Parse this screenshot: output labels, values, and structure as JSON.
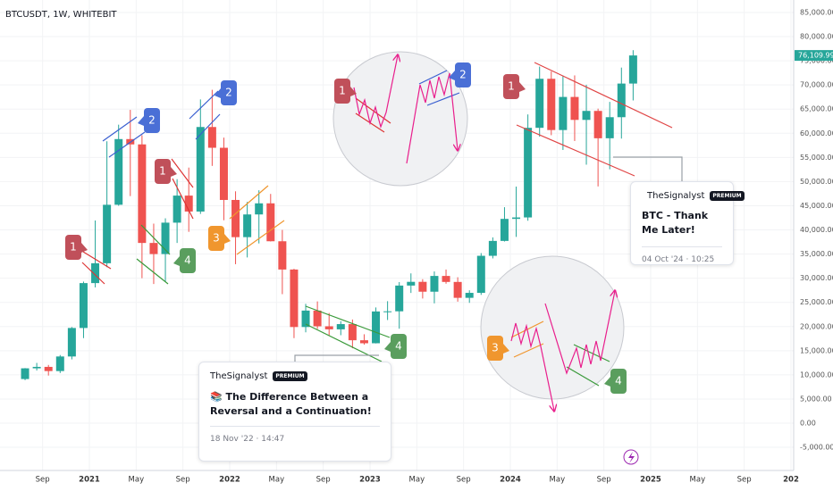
{
  "chart_data": {
    "type": "candlestick",
    "title": "BTCUSDT, 1W, WHITEBIT",
    "x": [
      "2020-07",
      "2020-08",
      "2020-09",
      "2020-10",
      "2020-11",
      "2020-12",
      "2021-01",
      "2021-02",
      "2021-03",
      "2021-04",
      "2021-05",
      "2021-06",
      "2021-07",
      "2021-08",
      "2021-09",
      "2021-10",
      "2021-11",
      "2021-12",
      "2022-01",
      "2022-02",
      "2022-03",
      "2022-04",
      "2022-05",
      "2022-06",
      "2022-07",
      "2022-08",
      "2022-09",
      "2022-10",
      "2022-11",
      "2022-12",
      "2023-01",
      "2023-02",
      "2023-03",
      "2023-04",
      "2023-05",
      "2023-06",
      "2023-07",
      "2023-08",
      "2023-09",
      "2023-10",
      "2023-11",
      "2023-12",
      "2024-01",
      "2024-02",
      "2024-03",
      "2024-04",
      "2024-05",
      "2024-06",
      "2024-07",
      "2024-08",
      "2024-09",
      "2024-10",
      "2024-11"
    ],
    "open": [
      9130,
      11350,
      11650,
      10780,
      13800,
      19700,
      28990,
      33100,
      45200,
      58800,
      57700,
      37300,
      35000,
      41500,
      47100,
      43800,
      61300,
      57000,
      46200,
      38500,
      43200,
      45500,
      37650,
      31800,
      19900,
      23300,
      20050,
      19420,
      20500,
      17160,
      16540,
      23120,
      23150,
      28480,
      29250,
      27210,
      30470,
      29230,
      25940,
      26970,
      34640,
      37720,
      42280,
      42580,
      61130,
      71280,
      60670,
      67520,
      62770,
      64630,
      58970,
      63330,
      70290
    ],
    "high": [
      11400,
      12470,
      12050,
      14100,
      19900,
      29300,
      41950,
      58350,
      61780,
      64850,
      59600,
      41300,
      42400,
      50500,
      52900,
      67000,
      69000,
      59100,
      47990,
      45800,
      48200,
      47450,
      40000,
      31950,
      24700,
      25200,
      22800,
      21100,
      21450,
      18400,
      23950,
      25250,
      29200,
      31000,
      29800,
      31400,
      31800,
      30200,
      27500,
      35200,
      38450,
      44700,
      48970,
      63900,
      73800,
      72800,
      71950,
      71980,
      70050,
      65100,
      66500,
      73600,
      77200
    ],
    "low": [
      8900,
      10900,
      9850,
      10380,
      13200,
      17600,
      28100,
      32300,
      45000,
      47000,
      30000,
      28800,
      29300,
      37300,
      39600,
      43300,
      53250,
      42000,
      32900,
      34300,
      37200,
      37600,
      26700,
      17600,
      18800,
      19500,
      18150,
      18200,
      15500,
      16250,
      16500,
      21350,
      19550,
      26950,
      25800,
      24800,
      28860,
      25150,
      24900,
      26550,
      34100,
      37600,
      38550,
      41900,
      59300,
      59600,
      56550,
      58400,
      53500,
      49000,
      52550,
      58900,
      66800
    ],
    "close": [
      11350,
      11650,
      10780,
      13800,
      19700,
      28990,
      33100,
      45200,
      58800,
      57700,
      37300,
      35000,
      41500,
      47100,
      43800,
      61300,
      57000,
      46200,
      38500,
      43200,
      45500,
      37650,
      31800,
      19900,
      23300,
      20050,
      19420,
      20500,
      17160,
      16540,
      23120,
      23150,
      28480,
      29250,
      27210,
      30470,
      29230,
      25940,
      26970,
      34640,
      37720,
      42280,
      42580,
      61130,
      71280,
      60670,
      67520,
      62770,
      64630,
      58970,
      63330,
      70290,
      76109.99
    ],
    "last_price_label": "76,109.99",
    "up_color": "#26a69a",
    "down_color": "#ef5350",
    "ylim": [
      -8000,
      88000
    ],
    "yticks": [
      {
        "value": 85000,
        "label": "85,000.00"
      },
      {
        "value": 80000,
        "label": "80,000.00"
      },
      {
        "value": 75000,
        "label": "75,000.00"
      },
      {
        "value": 70000,
        "label": "70,000.00"
      },
      {
        "value": 65000,
        "label": "65,000.00"
      },
      {
        "value": 60000,
        "label": "60,000.00"
      },
      {
        "value": 55000,
        "label": "55,000.00"
      },
      {
        "value": 50000,
        "label": "50,000.00"
      },
      {
        "value": 45000,
        "label": "45,000.00"
      },
      {
        "value": 40000,
        "label": "40,000.00"
      },
      {
        "value": 35000,
        "label": "35,000.00"
      },
      {
        "value": 30000,
        "label": "30,000.00"
      },
      {
        "value": 25000,
        "label": "25,000.00"
      },
      {
        "value": 20000,
        "label": "20,000.00"
      },
      {
        "value": 15000,
        "label": "15,000.00"
      },
      {
        "value": 10000,
        "label": "10,000.00"
      },
      {
        "value": 5000,
        "label": "5,000.00"
      },
      {
        "value": 0,
        "label": "0.00"
      },
      {
        "value": -5000,
        "label": "-5,000.00"
      }
    ],
    "xticks": [
      {
        "value": "2020-09",
        "label": "Sep"
      },
      {
        "value": "2021-01",
        "label": "2021"
      },
      {
        "value": "2021-05",
        "label": "May"
      },
      {
        "value": "2021-09",
        "label": "Sep"
      },
      {
        "value": "2022-01",
        "label": "2022"
      },
      {
        "value": "2022-05",
        "label": "May"
      },
      {
        "value": "2022-09",
        "label": "Sep"
      },
      {
        "value": "2023-01",
        "label": "2023"
      },
      {
        "value": "2023-05",
        "label": "May"
      },
      {
        "value": "2023-09",
        "label": "Sep"
      },
      {
        "value": "2024-01",
        "label": "2024"
      },
      {
        "value": "2024-05",
        "label": "May"
      },
      {
        "value": "2024-09",
        "label": "Sep"
      },
      {
        "value": "2025-01",
        "label": "2025"
      },
      {
        "value": "2025-05",
        "label": "May"
      },
      {
        "value": "2025-09",
        "label": "Sep"
      },
      {
        "value": "2026-01",
        "label": "202"
      }
    ],
    "annotations": [
      {
        "label": "1",
        "color": "#c0505a"
      },
      {
        "label": "2",
        "color": "#4a6fd6"
      },
      {
        "label": "1",
        "color": "#c0505a"
      },
      {
        "label": "4",
        "color": "#5a9e5e"
      },
      {
        "label": "2",
        "color": "#4a6fd6"
      },
      {
        "label": "3",
        "color": "#f0962e"
      },
      {
        "label": "4",
        "color": "#5a9e5e"
      },
      {
        "label": "1",
        "color": "#c0505a"
      },
      {
        "label": "2",
        "color": "#4a6fd6"
      },
      {
        "label": "1",
        "color": "#c0505a"
      },
      {
        "label": "3",
        "color": "#f0962e"
      },
      {
        "label": "4",
        "color": "#5a9e5e"
      }
    ]
  },
  "cards": [
    {
      "author": "TheSignalyst",
      "badge": "PREMIUM",
      "title": "📚 The Difference Between a Reversal and a Continuation!",
      "date": "18 Nov '22 · 14:47"
    },
    {
      "author": "TheSignalyst",
      "badge": "PREMIUM",
      "title": "BTC - Thank Me Later!",
      "date": "04 Oct '24 · 10:25"
    }
  ]
}
